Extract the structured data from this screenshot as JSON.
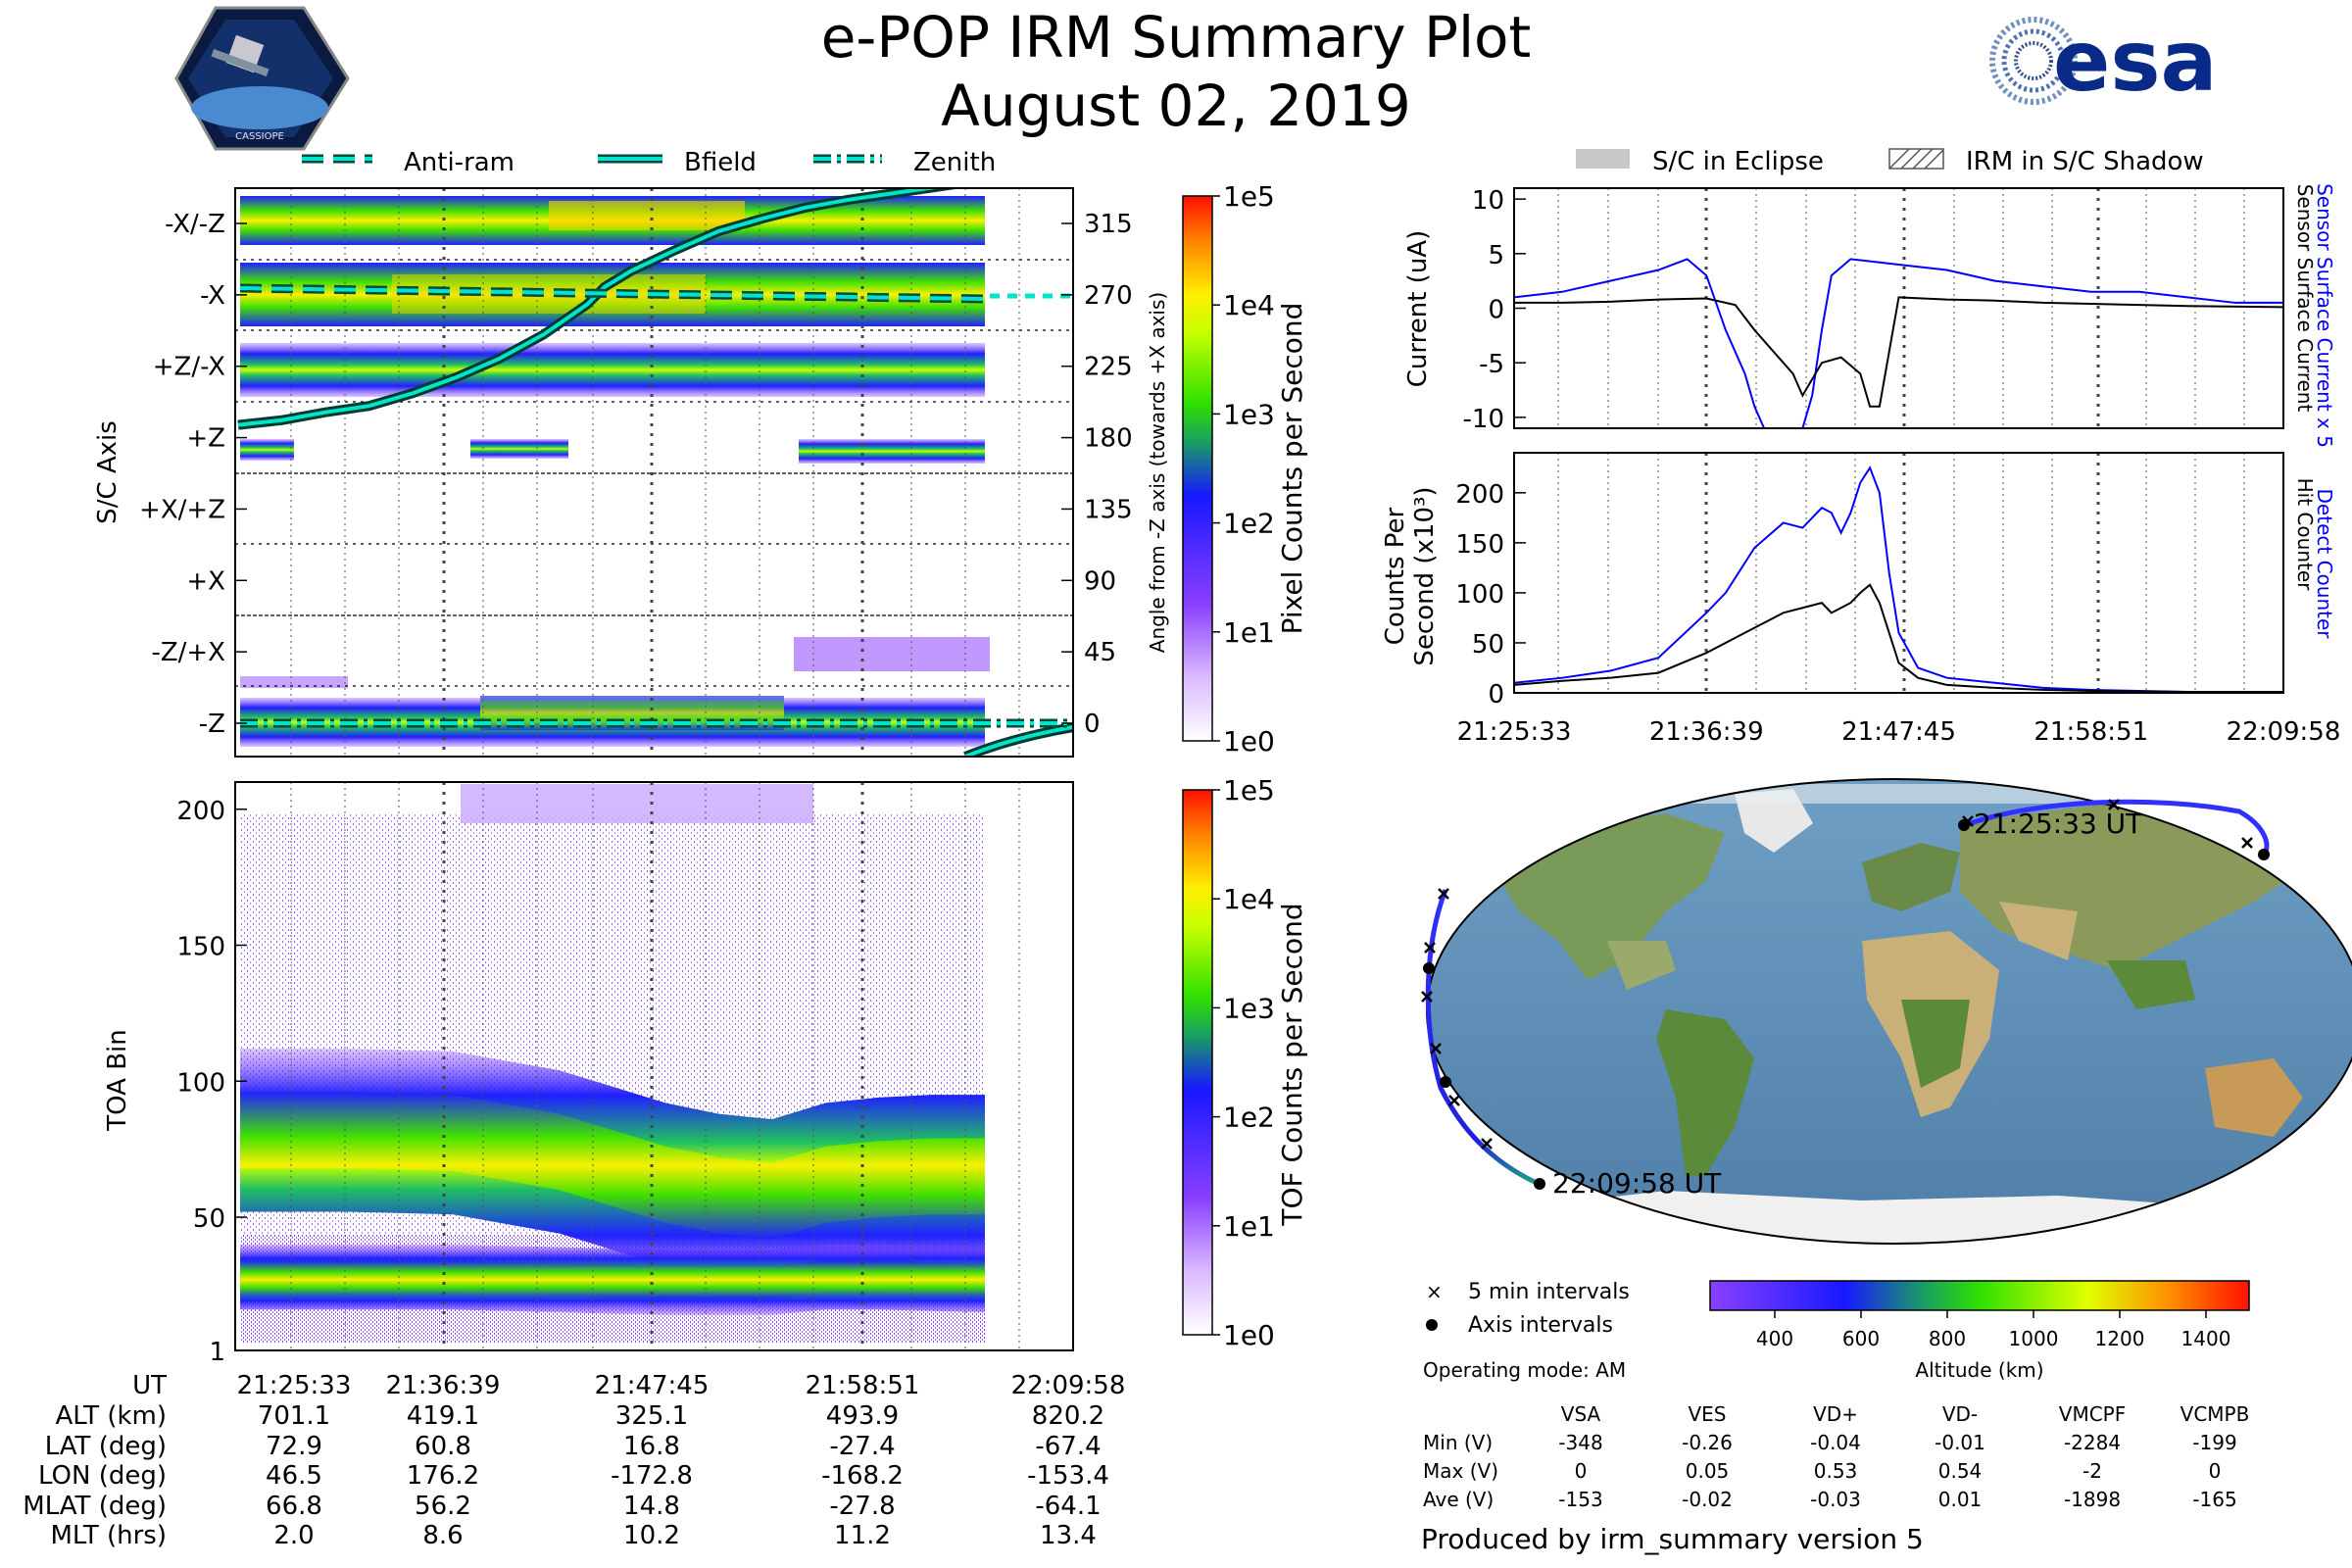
{
  "header": {
    "title_line1": "e-POP IRM Summary Plot",
    "title_line2": "August 02, 2019",
    "mission_logo_text": "CASSIOPE",
    "esa_logo_text": "esa"
  },
  "colors": {
    "pos_line": "#00e5c9",
    "sensor_blue": "#0000ff",
    "sensor_black": "#000000",
    "cmap": [
      "#ffffff",
      "#a05cff",
      "#2020ff",
      "#20c060",
      "#40ff00",
      "#ffff00",
      "#ff8000",
      "#ff0000"
    ]
  },
  "legend_top": [
    "Anti-ram",
    "Bfield",
    "Zenith"
  ],
  "legend_right": [
    "S/C in Eclipse",
    "IRM in S/C Shadow"
  ],
  "time_ticks": [
    "21:25:33",
    "21:36:39",
    "21:47:45",
    "21:58:51",
    "22:09:58"
  ],
  "chart_data": [
    {
      "type": "heatmap",
      "name": "sc-axis-spectrogram",
      "ylabel": "S/C Axis",
      "y_categories": [
        "-X/-Z",
        "-X",
        "+Z/-X",
        "+Z",
        "+X/+Z",
        "+X",
        "-Z/+X",
        "-Z"
      ],
      "right_ylabel": "Angle from -Z axis (towards +X axis)",
      "right_ticks": [
        315,
        270,
        225,
        180,
        135,
        90,
        45,
        0
      ],
      "colorbar_label": "Pixel Counts per Second",
      "colorbar_ticks": [
        "1e5",
        "1e4",
        "1e3",
        "1e2",
        "1e1",
        "1e0"
      ],
      "series": [
        {
          "name": "Bfield",
          "x_min": [
            0,
            5,
            10,
            15,
            20,
            25,
            30,
            35,
            40,
            42,
            45,
            50,
            55,
            60,
            65,
            70,
            80,
            85
          ],
          "angle_deg": [
            188,
            191,
            196,
            200,
            208,
            218,
            230,
            245,
            264,
            275,
            285,
            298,
            310,
            318,
            325,
            330,
            338,
            342
          ]
        },
        {
          "name": "Anti-ram",
          "angle_deg_start": 272,
          "angle_deg_end": 266
        },
        {
          "name": "Zenith",
          "angle_deg": 0
        }
      ]
    },
    {
      "type": "heatmap",
      "name": "toa-spectrogram",
      "ylabel": "TOA Bin",
      "yticks": [
        1,
        50,
        100,
        150,
        200
      ],
      "ylim": [
        1,
        210
      ],
      "colorbar_label": "TOF Counts per Second",
      "colorbar_ticks": [
        "1e5",
        "1e4",
        "1e3",
        "1e2",
        "1e1",
        "1e0"
      ],
      "upper_band_center": {
        "x_min": [
          0,
          10,
          20,
          30,
          40,
          45,
          50,
          55,
          60,
          65,
          70
        ],
        "toa": [
          82,
          82,
          81,
          74,
          62,
          58,
          56,
          62,
          64,
          65,
          65
        ]
      },
      "lower_band_center": {
        "x_min": [
          0,
          10,
          20,
          30,
          40,
          50,
          55,
          60,
          70
        ],
        "toa": [
          28,
          28,
          28,
          27,
          26,
          26,
          28,
          28,
          27
        ]
      }
    },
    {
      "type": "line",
      "name": "sensor-current",
      "ylabel": "Current (uA)",
      "ylim": [
        -11,
        11
      ],
      "yticks": [
        10,
        5,
        0,
        -5,
        -10
      ],
      "right_labels": [
        "Sensor Surface Current x 5",
        "Sensor Surface Current"
      ],
      "series": [
        {
          "name": "Sensor Surface Current x 5",
          "x_min": [
            0,
            5,
            10,
            15,
            18,
            20,
            22,
            24,
            25,
            26,
            30,
            31,
            32,
            33,
            35,
            40,
            45,
            50,
            55,
            60,
            65,
            70,
            75,
            80
          ],
          "values": [
            1,
            1.5,
            2.5,
            3.5,
            4.5,
            3,
            -2,
            -6,
            -9,
            -11,
            -11,
            -8,
            -2,
            3,
            4.5,
            4,
            3.5,
            2.5,
            2,
            1.5,
            1.5,
            1,
            0.5,
            0.5
          ]
        },
        {
          "name": "Sensor Surface Current",
          "x_min": [
            0,
            5,
            10,
            15,
            20,
            23,
            25,
            27,
            29,
            30,
            32,
            34,
            36,
            37,
            38,
            40,
            45,
            50,
            55,
            60,
            65,
            70,
            80
          ],
          "values": [
            0.5,
            0.5,
            0.6,
            0.8,
            0.9,
            0.3,
            -2,
            -4,
            -6,
            -8,
            -5,
            -4.5,
            -6,
            -9,
            -9,
            1,
            0.8,
            0.7,
            0.5,
            0.4,
            0.3,
            0.2,
            0.1
          ]
        }
      ]
    },
    {
      "type": "line",
      "name": "detect-counter",
      "ylabel": "Counts Per Second (x10³)",
      "ylim": [
        0,
        240
      ],
      "yticks": [
        0,
        50,
        100,
        150,
        200
      ],
      "right_labels": [
        "Detect Counter",
        "Hit Counter"
      ],
      "series": [
        {
          "name": "Detect Counter",
          "x_min": [
            0,
            5,
            10,
            15,
            20,
            22,
            25,
            28,
            30,
            32,
            33,
            34,
            35,
            36,
            37,
            38,
            39,
            40,
            42,
            45,
            50,
            55,
            60,
            65,
            70,
            80
          ],
          "values": [
            10,
            15,
            22,
            35,
            80,
            100,
            145,
            170,
            165,
            185,
            180,
            160,
            180,
            210,
            225,
            200,
            120,
            60,
            25,
            15,
            10,
            5,
            3,
            2,
            1,
            1
          ]
        },
        {
          "name": "Hit Counter",
          "x_min": [
            0,
            5,
            10,
            15,
            20,
            25,
            28,
            30,
            32,
            33,
            34,
            35,
            36,
            37,
            38,
            39,
            40,
            42,
            45,
            50,
            55,
            60,
            70,
            80
          ],
          "values": [
            8,
            12,
            15,
            20,
            40,
            65,
            80,
            85,
            90,
            80,
            85,
            90,
            100,
            108,
            90,
            60,
            30,
            15,
            8,
            5,
            3,
            2,
            1,
            1
          ]
        }
      ]
    },
    {
      "type": "scatter",
      "name": "orbit-map",
      "start_label": "21:25:33 UT",
      "end_label": "22:09:58 UT",
      "legend": [
        "5 min intervals",
        "Axis intervals"
      ],
      "colorbar_label": "Altitude (km)",
      "colorbar_ticks": [
        400,
        600,
        800,
        1000,
        1200,
        1400
      ],
      "orbit_lon_lat": [
        [
          46.5,
          72.9
        ],
        [
          90,
          76
        ],
        [
          140,
          74
        ],
        [
          176.2,
          60.8
        ],
        [
          -172,
          40
        ],
        [
          -170,
          20
        ],
        [
          -170,
          0
        ],
        [
          -172.8,
          16.8
        ],
        [
          -168.2,
          -27.4
        ],
        [
          -160,
          -50
        ],
        [
          -153.4,
          -67.4
        ]
      ]
    }
  ],
  "ephemeris": {
    "row_labels": [
      "UT",
      "ALT (km)",
      "LAT (deg)",
      "LON (deg)",
      "MLAT (deg)",
      "MLT (hrs)"
    ],
    "columns": [
      [
        "21:25:33",
        "701.1",
        "72.9",
        "46.5",
        "66.8",
        "2.0"
      ],
      [
        "21:36:39",
        "419.1",
        "60.8",
        "176.2",
        "56.2",
        "8.6"
      ],
      [
        "21:47:45",
        "325.1",
        "16.8",
        "-172.8",
        "14.8",
        "10.2"
      ],
      [
        "21:58:51",
        "493.9",
        "-27.4",
        "-168.2",
        "-27.8",
        "11.2"
      ],
      [
        "22:09:58",
        "820.2",
        "-67.4",
        "-153.4",
        "-64.1",
        "13.4"
      ]
    ]
  },
  "operating_mode": "Operating mode: AM",
  "voltage_table": {
    "headers": [
      "VSA",
      "VES",
      "VD+",
      "VD-",
      "VMCPF",
      "VCMPB"
    ],
    "rows": [
      {
        "label": "Min (V)",
        "values": [
          "-348",
          "-0.26",
          "-0.04",
          "-0.01",
          "-2284",
          "-199"
        ]
      },
      {
        "label": "Max (V)",
        "values": [
          "0",
          "0.05",
          "0.53",
          "0.54",
          "-2",
          "0"
        ]
      },
      {
        "label": "Ave (V)",
        "values": [
          "-153",
          "-0.02",
          "-0.03",
          "0.01",
          "-1898",
          "-165"
        ]
      }
    ]
  },
  "footer": "Produced by irm_summary version 5"
}
